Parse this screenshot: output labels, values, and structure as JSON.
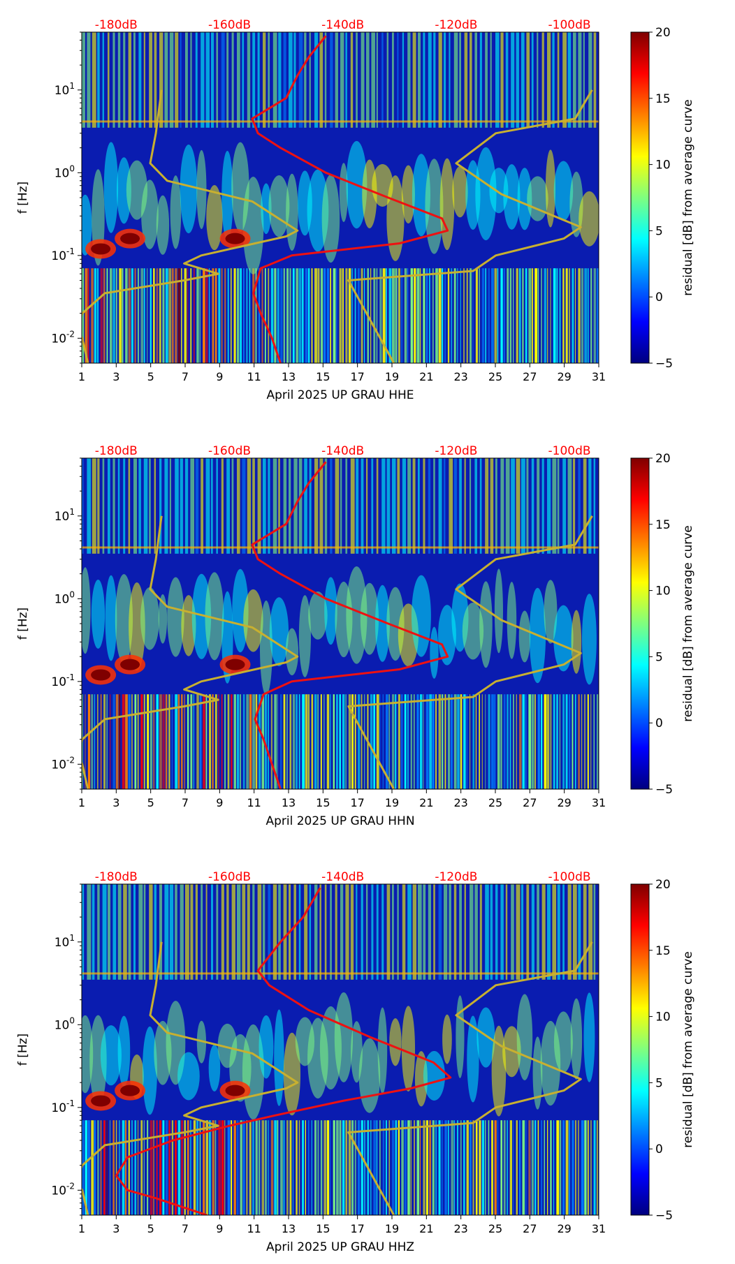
{
  "colors": {
    "db_label": "#ff0000",
    "red_curve": "#ee1111",
    "olive_curve": "#c8b030",
    "axis": "#000000",
    "colormap": [
      "#00007f",
      "#0000ff",
      "#007fff",
      "#00ffff",
      "#7fff7f",
      "#ffff00",
      "#ff7f00",
      "#ff0000",
      "#7f0000"
    ]
  },
  "chart_data": [
    {
      "type": "heatmap",
      "title": "",
      "xlabel": "April 2025 UP GRAU  HHE",
      "ylabel": "f [Hz]",
      "colorbar_label": "residual [dB] from average curve",
      "x_range": [
        1,
        31
      ],
      "x_ticks": [
        "1",
        "3",
        "5",
        "7",
        "9",
        "11",
        "13",
        "15",
        "17",
        "19",
        "21",
        "23",
        "25",
        "27",
        "29",
        "31"
      ],
      "y_range": [
        0.005,
        50
      ],
      "y_tick_labels": [
        "10^-2",
        "10^-1",
        "10^0",
        "10^1"
      ],
      "color_range": [
        -5,
        20
      ],
      "colorbar_ticks": [
        "20",
        "15",
        "10",
        "5",
        "0",
        "-5"
      ],
      "db_scale": {
        "labels": [
          "-180dB",
          "-160dB",
          "-140dB",
          "-120dB",
          "-100dB"
        ],
        "values": [
          -180,
          -160,
          -140,
          -120,
          -100
        ]
      },
      "curves": [
        {
          "name": "median PSD",
          "color": "red",
          "points": [
            [
              -151.0,
              0.005
            ],
            [
              -152.5,
              0.01
            ],
            [
              -154.5,
              0.02
            ],
            [
              -155.8,
              0.035
            ],
            [
              -154.5,
              0.07
            ],
            [
              -149.0,
              0.1
            ],
            [
              -130.0,
              0.14
            ],
            [
              -121.5,
              0.2
            ],
            [
              -122.5,
              0.28
            ],
            [
              -132.0,
              0.5
            ],
            [
              -143.0,
              1.0
            ],
            [
              -151.0,
              2.0
            ],
            [
              -155.0,
              3.0
            ],
            [
              -156.0,
              4.5
            ],
            [
              -150.0,
              8.0
            ],
            [
              -148.0,
              15.0
            ],
            [
              -146.0,
              25.0
            ],
            [
              -143.0,
              45.0
            ]
          ]
        },
        {
          "name": "NLNM",
          "color": "olive",
          "points": [
            [
              -185.0,
              0.005
            ],
            [
              -186.0,
              0.01
            ],
            [
              -187.0,
              0.013
            ],
            [
              -186.0,
              0.02
            ],
            [
              -182.0,
              0.035
            ],
            [
              -168.0,
              0.05
            ],
            [
              -162.0,
              0.06
            ],
            [
              -168.0,
              0.08
            ],
            [
              -165.0,
              0.1
            ],
            [
              -150.0,
              0.17
            ],
            [
              -148.0,
              0.2
            ],
            [
              -156.0,
              0.45
            ],
            [
              -171.0,
              0.8
            ],
            [
              -174.0,
              1.3
            ],
            [
              -173.0,
              3.0
            ],
            [
              -172.0,
              10.0
            ]
          ]
        },
        {
          "name": "NHNM",
          "color": "olive",
          "points": [
            [
              -131.0,
              0.005
            ],
            [
              -139.0,
              0.05
            ],
            [
              -117.0,
              0.065
            ],
            [
              -113.0,
              0.1
            ],
            [
              -101.0,
              0.16
            ],
            [
              -98.0,
              0.22
            ],
            [
              -112.0,
              0.55
            ],
            [
              -120.0,
              1.3
            ],
            [
              -113.0,
              3.0
            ],
            [
              -99.0,
              4.5
            ],
            [
              -96.0,
              10.0
            ]
          ]
        }
      ]
    },
    {
      "type": "heatmap",
      "title": "",
      "xlabel": "April 2025 UP GRAU  HHN",
      "ylabel": "f [Hz]",
      "colorbar_label": "residual [dB] from average curve",
      "x_range": [
        1,
        31
      ],
      "x_ticks": [
        "1",
        "3",
        "5",
        "7",
        "9",
        "11",
        "13",
        "15",
        "17",
        "19",
        "21",
        "23",
        "25",
        "27",
        "29",
        "31"
      ],
      "y_range": [
        0.005,
        50
      ],
      "y_tick_labels": [
        "10^-2",
        "10^-1",
        "10^0",
        "10^1"
      ],
      "color_range": [
        -5,
        20
      ],
      "colorbar_ticks": [
        "20",
        "15",
        "10",
        "5",
        "0",
        "-5"
      ],
      "db_scale": {
        "labels": [
          "-180dB",
          "-160dB",
          "-140dB",
          "-120dB",
          "-100dB"
        ],
        "values": [
          -180,
          -160,
          -140,
          -120,
          -100
        ]
      },
      "curves": [
        {
          "name": "median PSD",
          "color": "red",
          "points": [
            [
              -151.0,
              0.005
            ],
            [
              -152.5,
              0.01
            ],
            [
              -154.0,
              0.02
            ],
            [
              -155.5,
              0.035
            ],
            [
              -154.0,
              0.07
            ],
            [
              -149.0,
              0.1
            ],
            [
              -130.0,
              0.14
            ],
            [
              -121.5,
              0.2
            ],
            [
              -122.5,
              0.28
            ],
            [
              -132.0,
              0.5
            ],
            [
              -143.0,
              1.0
            ],
            [
              -151.0,
              2.0
            ],
            [
              -155.0,
              3.0
            ],
            [
              -156.0,
              4.5
            ],
            [
              -150.0,
              8.0
            ],
            [
              -148.0,
              15.0
            ],
            [
              -146.0,
              25.0
            ],
            [
              -143.0,
              45.0
            ]
          ]
        },
        {
          "name": "NLNM",
          "color": "olive",
          "points": [
            [
              -185.0,
              0.005
            ],
            [
              -186.0,
              0.01
            ],
            [
              -187.0,
              0.013
            ],
            [
              -186.0,
              0.02
            ],
            [
              -182.0,
              0.035
            ],
            [
              -168.0,
              0.05
            ],
            [
              -162.0,
              0.06
            ],
            [
              -168.0,
              0.08
            ],
            [
              -165.0,
              0.1
            ],
            [
              -150.0,
              0.17
            ],
            [
              -148.0,
              0.2
            ],
            [
              -156.0,
              0.45
            ],
            [
              -171.0,
              0.8
            ],
            [
              -174.0,
              1.3
            ],
            [
              -173.0,
              3.0
            ],
            [
              -172.0,
              10.0
            ]
          ]
        },
        {
          "name": "NHNM",
          "color": "olive",
          "points": [
            [
              -131.0,
              0.005
            ],
            [
              -139.0,
              0.05
            ],
            [
              -117.0,
              0.065
            ],
            [
              -113.0,
              0.1
            ],
            [
              -101.0,
              0.16
            ],
            [
              -98.0,
              0.22
            ],
            [
              -112.0,
              0.55
            ],
            [
              -120.0,
              1.3
            ],
            [
              -113.0,
              3.0
            ],
            [
              -99.0,
              4.5
            ],
            [
              -96.0,
              10.0
            ]
          ]
        }
      ]
    },
    {
      "type": "heatmap",
      "title": "",
      "xlabel": "April 2025 UP GRAU  HHZ",
      "ylabel": "f [Hz]",
      "colorbar_label": "residual [dB] from average curve",
      "x_range": [
        1,
        31
      ],
      "x_ticks": [
        "1",
        "3",
        "5",
        "7",
        "9",
        "11",
        "13",
        "15",
        "17",
        "19",
        "21",
        "23",
        "25",
        "27",
        "29",
        "31"
      ],
      "y_range": [
        0.005,
        50
      ],
      "y_tick_labels": [
        "10^-2",
        "10^-1",
        "10^0",
        "10^1"
      ],
      "color_range": [
        -5,
        20
      ],
      "colorbar_ticks": [
        "20",
        "15",
        "10",
        "5",
        "0",
        "-5"
      ],
      "db_scale": {
        "labels": [
          "-180dB",
          "-160dB",
          "-140dB",
          "-120dB",
          "-100dB"
        ],
        "values": [
          -180,
          -160,
          -140,
          -120,
          -100
        ]
      },
      "curves": [
        {
          "name": "median PSD",
          "color": "red",
          "points": [
            [
              -164.0,
              0.005
            ],
            [
              -173.0,
              0.008
            ],
            [
              -178.0,
              0.01
            ],
            [
              -180.0,
              0.015
            ],
            [
              -178.0,
              0.025
            ],
            [
              -170.0,
              0.04
            ],
            [
              -160.0,
              0.06
            ],
            [
              -152.0,
              0.08
            ],
            [
              -140.0,
              0.12
            ],
            [
              -128.0,
              0.17
            ],
            [
              -121.0,
              0.23
            ],
            [
              -124.0,
              0.35
            ],
            [
              -135.0,
              0.7
            ],
            [
              -146.0,
              1.5
            ],
            [
              -153.0,
              3.0
            ],
            [
              -155.0,
              4.5
            ],
            [
              -151.0,
              10.0
            ],
            [
              -147.0,
              20.0
            ],
            [
              -144.0,
              45.0
            ]
          ]
        },
        {
          "name": "NLNM",
          "color": "olive",
          "points": [
            [
              -185.0,
              0.005
            ],
            [
              -186.0,
              0.01
            ],
            [
              -187.0,
              0.013
            ],
            [
              -186.0,
              0.02
            ],
            [
              -182.0,
              0.035
            ],
            [
              -168.0,
              0.05
            ],
            [
              -162.0,
              0.06
            ],
            [
              -168.0,
              0.08
            ],
            [
              -165.0,
              0.1
            ],
            [
              -150.0,
              0.17
            ],
            [
              -148.0,
              0.2
            ],
            [
              -156.0,
              0.45
            ],
            [
              -171.0,
              0.8
            ],
            [
              -174.0,
              1.3
            ],
            [
              -173.0,
              3.0
            ],
            [
              -172.0,
              10.0
            ]
          ]
        },
        {
          "name": "NHNM",
          "color": "olive",
          "points": [
            [
              -131.0,
              0.005
            ],
            [
              -139.0,
              0.05
            ],
            [
              -117.0,
              0.065
            ],
            [
              -113.0,
              0.1
            ],
            [
              -101.0,
              0.16
            ],
            [
              -98.0,
              0.22
            ],
            [
              -112.0,
              0.55
            ],
            [
              -120.0,
              1.3
            ],
            [
              -113.0,
              3.0
            ],
            [
              -99.0,
              4.5
            ],
            [
              -96.0,
              10.0
            ]
          ]
        }
      ]
    }
  ]
}
